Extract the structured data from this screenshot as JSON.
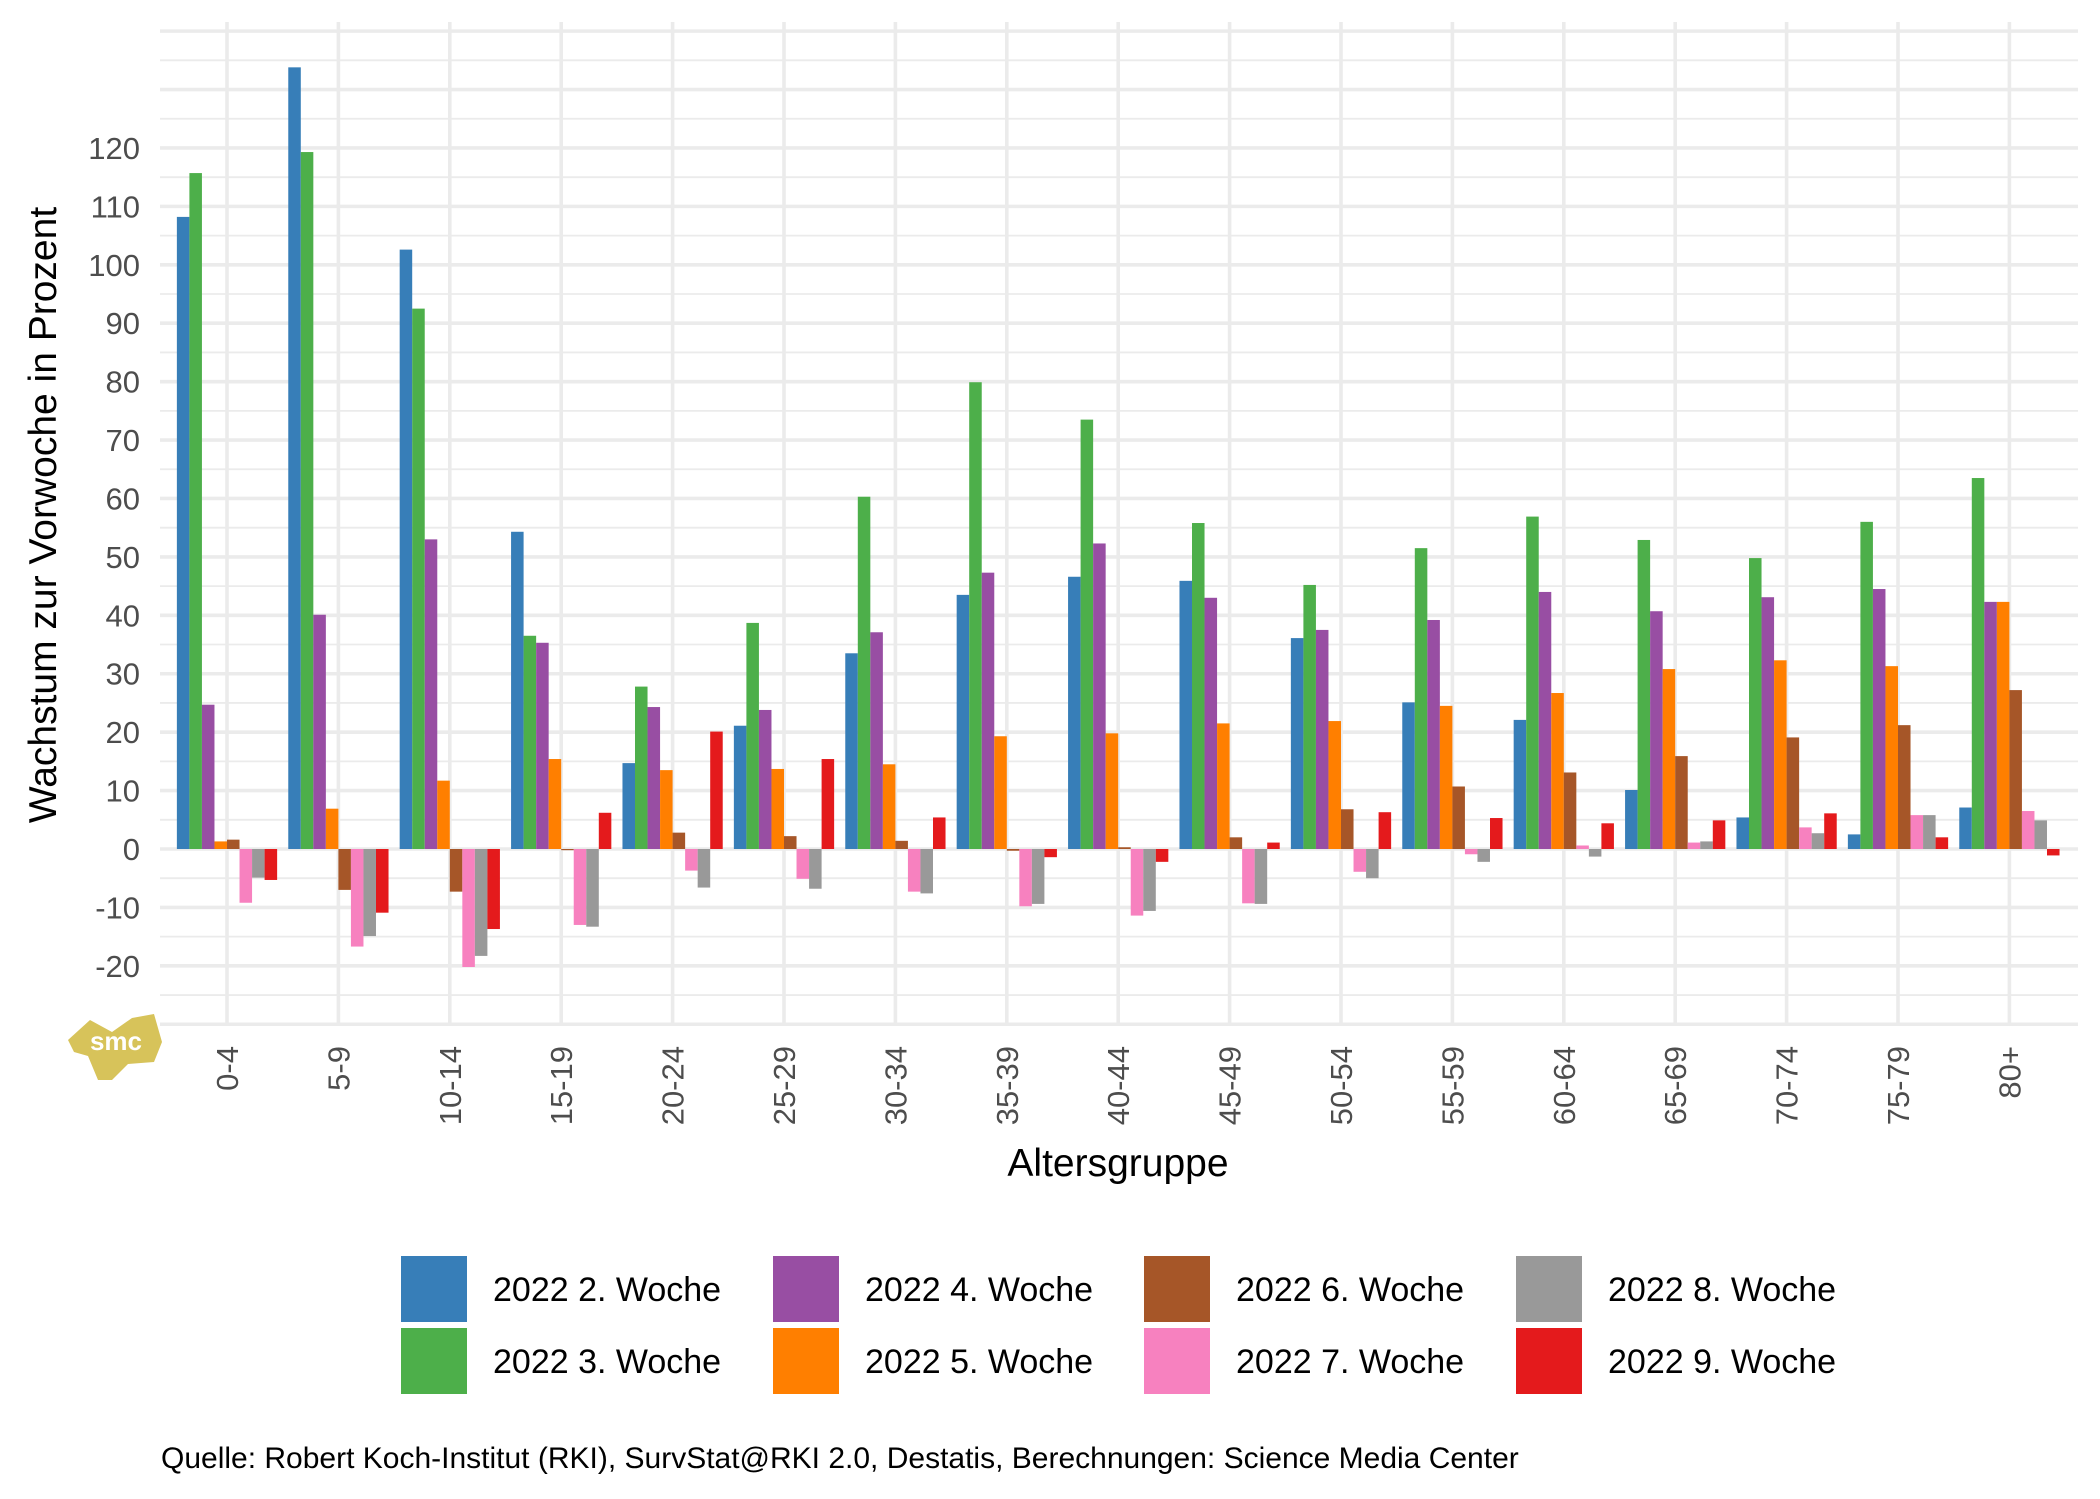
{
  "chart_data": {
    "type": "bar",
    "title": "",
    "xlabel": "Altersgruppe",
    "ylabel": "Wachstum zur Vorwoche in Prozent",
    "ylim": [
      -30,
      141
    ],
    "yticks": [
      -20,
      -10,
      0,
      10,
      20,
      30,
      40,
      50,
      60,
      70,
      80,
      90,
      100,
      110,
      120
    ],
    "grid": true,
    "legend_position": "bottom",
    "categories": [
      "0-4",
      "5-9",
      "10-14",
      "15-19",
      "20-24",
      "25-29",
      "30-34",
      "35-39",
      "40-44",
      "45-49",
      "50-54",
      "55-59",
      "60-64",
      "65-69",
      "70-74",
      "75-79",
      "80+"
    ],
    "series": [
      {
        "name": "2022 2. Woche",
        "color": "#377eb8",
        "values": [
          108.2,
          133.8,
          102.6,
          54.3,
          14.7,
          21.1,
          33.5,
          43.5,
          46.6,
          45.9,
          36.1,
          25.1,
          22.1,
          10.1,
          5.4,
          2.5,
          7.1
        ]
      },
      {
        "name": "2022 3. Woche",
        "color": "#4daf4a",
        "values": [
          115.7,
          119.3,
          92.5,
          36.5,
          27.8,
          38.7,
          60.3,
          79.9,
          73.5,
          55.8,
          45.2,
          51.5,
          56.9,
          52.9,
          49.8,
          56.0,
          63.5
        ]
      },
      {
        "name": "2022 4. Woche",
        "color": "#984ea3",
        "values": [
          24.7,
          40.1,
          53.0,
          35.3,
          24.3,
          23.8,
          37.1,
          47.3,
          52.3,
          43.0,
          37.5,
          39.2,
          44.0,
          40.7,
          43.1,
          44.5,
          42.3
        ]
      },
      {
        "name": "2022 5. Woche",
        "color": "#ff7f00",
        "values": [
          1.3,
          6.9,
          11.7,
          15.4,
          13.5,
          13.7,
          14.5,
          19.3,
          19.8,
          21.5,
          21.9,
          24.5,
          26.7,
          30.8,
          32.3,
          31.3,
          42.3
        ]
      },
      {
        "name": "2022 6. Woche",
        "color": "#a65628",
        "values": [
          1.6,
          -7.0,
          -7.3,
          -0.2,
          2.8,
          2.2,
          1.4,
          -0.3,
          0.3,
          2.0,
          6.8,
          10.7,
          13.1,
          15.9,
          19.1,
          21.2,
          27.2
        ]
      },
      {
        "name": "2022 7. Woche",
        "color": "#f781bf",
        "values": [
          -9.2,
          -16.7,
          -20.2,
          -13.0,
          -3.7,
          -5.1,
          -7.3,
          -9.8,
          -11.4,
          -9.3,
          -3.9,
          -0.9,
          0.6,
          1.1,
          3.7,
          5.8,
          6.5
        ]
      },
      {
        "name": "2022 8. Woche",
        "color": "#999999",
        "values": [
          -4.9,
          -14.9,
          -18.3,
          -13.3,
          -6.6,
          -6.8,
          -7.6,
          -9.4,
          -10.6,
          -9.4,
          -5.0,
          -2.2,
          -1.3,
          1.3,
          2.7,
          5.8,
          4.9
        ]
      },
      {
        "name": "2022 9. Woche",
        "color": "#e41a1c",
        "values": [
          -5.3,
          -10.9,
          -13.7,
          6.2,
          20.1,
          15.4,
          5.4,
          -1.4,
          -2.2,
          1.1,
          6.3,
          5.3,
          4.4,
          4.9,
          6.1,
          2.0,
          -1.1
        ]
      }
    ],
    "legend": {
      "columns": [
        [
          "2022 2. Woche",
          "2022 3. Woche"
        ],
        [
          "2022 4. Woche",
          "2022 5. Woche"
        ],
        [
          "2022 6. Woche",
          "2022 7. Woche"
        ],
        [
          "2022 8. Woche",
          "2022 9. Woche"
        ]
      ]
    },
    "caption": "Quelle: Robert Koch-Institut (RKI), SurvStat@RKI 2.0, Destatis, Berechnungen: Science Media Center",
    "logo_text": "smc",
    "logo_color": "#d7c35a"
  }
}
